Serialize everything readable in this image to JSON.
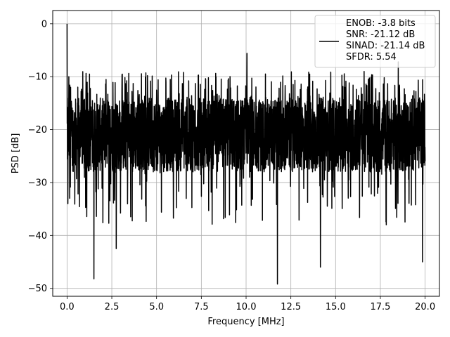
{
  "chart_data": {
    "type": "line",
    "title": "",
    "xlabel": "Frequency [MHz]",
    "ylabel": "PSD [dB]",
    "xlim": [
      -0.8,
      20.8
    ],
    "ylim": [
      -51.5,
      2.5
    ],
    "xticks": [
      0.0,
      2.5,
      5.0,
      7.5,
      10.0,
      12.5,
      15.0,
      17.5,
      20.0
    ],
    "xtick_labels": [
      "0.0",
      "2.5",
      "5.0",
      "7.5",
      "10.0",
      "12.5",
      "15.0",
      "17.5",
      "20.0"
    ],
    "yticks": [
      0,
      -10,
      -20,
      -30,
      -40,
      -50
    ],
    "ytick_labels": [
      "0",
      "−10",
      "−20",
      "−30",
      "−40",
      "−50"
    ],
    "grid": true,
    "legend_position": "top-right",
    "series": [
      {
        "name": "ENOB: -3.8 bits\nSNR: -21.12 dB\nSINAD: -21.14 dB\nSFDR: 5.54",
        "legend_lines": [
          "ENOB: -3.8 bits",
          "SNR: -21.12 dB",
          "SINAD: -21.14 dB",
          "SFDR: 5.54"
        ],
        "color": "#000000",
        "noise_band": {
          "upper_typical": -14,
          "lower_typical": -28,
          "center": -21
        },
        "x": [
          0.0,
          0.05,
          0.1,
          0.15,
          0.2,
          1.5,
          2.75,
          6.5,
          10.05,
          11.75,
          13.55,
          14.15,
          18.5,
          19.85,
          20.0
        ],
        "y": [
          0.0,
          -34.0,
          -10.0,
          -33.0,
          -12.0,
          -48.2,
          -42.5,
          -9.2,
          -5.6,
          -49.2,
          -9.5,
          -46.0,
          -7.2,
          -45.0,
          -26.0
        ]
      }
    ]
  }
}
